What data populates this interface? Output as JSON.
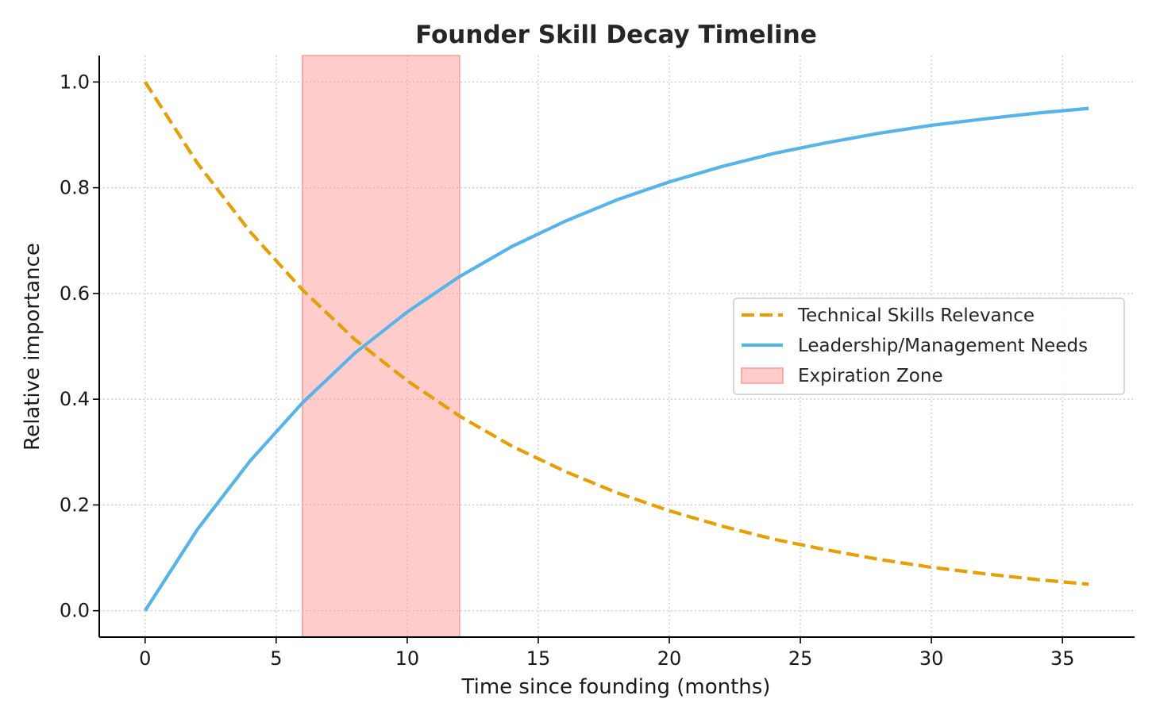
{
  "chart_data": {
    "type": "line",
    "title": "Founder Skill Decay Timeline",
    "xlabel": "Time since founding (months)",
    "ylabel": "Relative importance",
    "xlim": [
      -1.75,
      37.75
    ],
    "ylim": [
      -0.05,
      1.05
    ],
    "x_ticks": [
      0,
      5,
      10,
      15,
      20,
      25,
      30,
      35
    ],
    "x_tick_labels": [
      "0",
      "5",
      "10",
      "15",
      "20",
      "25",
      "30",
      "35"
    ],
    "y_ticks": [
      0.0,
      0.2,
      0.4,
      0.6,
      0.8,
      1.0
    ],
    "y_tick_labels": [
      "0.0",
      "0.2",
      "0.4",
      "0.6",
      "0.8",
      "1.0"
    ],
    "grid": true,
    "legend_position": "center-right",
    "x": [
      0,
      2,
      4,
      6,
      8,
      10,
      12,
      14,
      16,
      18,
      20,
      22,
      24,
      26,
      28,
      30,
      32,
      34,
      36
    ],
    "series": [
      {
        "name": "Technical Skills Relevance",
        "style": "dashed",
        "color": "#E69F00",
        "values": [
          1.0,
          0.846,
          0.717,
          0.607,
          0.513,
          0.435,
          0.368,
          0.311,
          0.264,
          0.223,
          0.189,
          0.16,
          0.135,
          0.115,
          0.097,
          0.082,
          0.07,
          0.059,
          0.05
        ]
      },
      {
        "name": "Leadership/Management Needs",
        "style": "solid",
        "color": "#56B4E9",
        "values": [
          0.0,
          0.154,
          0.283,
          0.393,
          0.487,
          0.565,
          0.632,
          0.689,
          0.736,
          0.777,
          0.811,
          0.84,
          0.865,
          0.885,
          0.903,
          0.918,
          0.93,
          0.941,
          0.95
        ]
      }
    ],
    "shaded_regions": [
      {
        "name": "Expiration Zone",
        "x_start": 6,
        "x_end": 12,
        "color": "#FF9999"
      }
    ]
  }
}
